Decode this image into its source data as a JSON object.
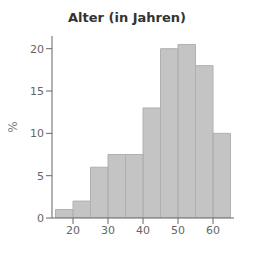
{
  "chart_data": {
    "type": "histogram",
    "title": "Alter (in Jahren)",
    "ylabel": "%",
    "bins": [
      15,
      20,
      25,
      30,
      35,
      40,
      45,
      50,
      55,
      60,
      65
    ],
    "values": [
      1.0,
      2.0,
      6.0,
      7.5,
      7.5,
      13.0,
      20.0,
      20.5,
      18.0,
      10.0
    ],
    "color": "#b0b0b0",
    "xlim": [
      14,
      66
    ],
    "xticks": [
      20,
      30,
      40,
      50,
      60
    ],
    "ylim": [
      0,
      21.5
    ],
    "yticks": [
      0,
      5,
      10,
      15,
      20
    ]
  }
}
